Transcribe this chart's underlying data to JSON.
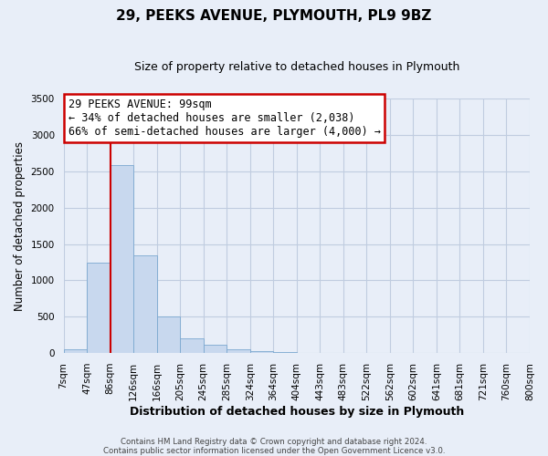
{
  "title": "29, PEEKS AVENUE, PLYMOUTH, PL9 9BZ",
  "subtitle": "Size of property relative to detached houses in Plymouth",
  "xlabel": "Distribution of detached houses by size in Plymouth",
  "ylabel": "Number of detached properties",
  "bar_color": "#c8d8ee",
  "bar_edge_color": "#7ba8d0",
  "background_color": "#e8eef8",
  "plot_bg_color": "#e8eef8",
  "grid_color": "#c0cce0",
  "annotation_box_color": "#cc0000",
  "annotation_line_color": "#cc0000",
  "ylim": [
    0,
    3500
  ],
  "yticks": [
    0,
    500,
    1000,
    1500,
    2000,
    2500,
    3000,
    3500
  ],
  "bin_labels": [
    "7sqm",
    "47sqm",
    "86sqm",
    "126sqm",
    "166sqm",
    "205sqm",
    "245sqm",
    "285sqm",
    "324sqm",
    "364sqm",
    "404sqm",
    "443sqm",
    "483sqm",
    "522sqm",
    "562sqm",
    "602sqm",
    "641sqm",
    "681sqm",
    "721sqm",
    "760sqm",
    "800sqm"
  ],
  "bar_values": [
    50,
    1240,
    2590,
    1340,
    500,
    200,
    110,
    50,
    30,
    20,
    0,
    0,
    0,
    0,
    0,
    0,
    0,
    0,
    0,
    0
  ],
  "property_line_x": 2.0,
  "annotation_title": "29 PEEKS AVENUE: 99sqm",
  "annotation_line1": "← 34% of detached houses are smaller (2,038)",
  "annotation_line2": "66% of semi-detached houses are larger (4,000) →",
  "footer_line1": "Contains HM Land Registry data © Crown copyright and database right 2024.",
  "footer_line2": "Contains public sector information licensed under the Open Government Licence v3.0."
}
